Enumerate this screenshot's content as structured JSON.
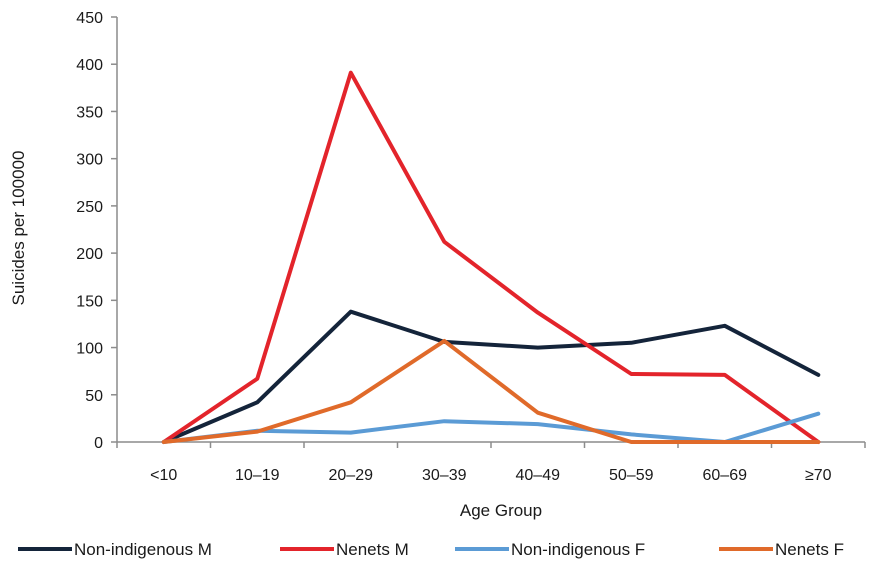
{
  "chart_data": {
    "type": "line",
    "title": "",
    "xlabel": "Age Group",
    "ylabel": "Suicides per 100000",
    "categories": [
      "<10",
      "10–19",
      "20–29",
      "30–39",
      "40–49",
      "50–59",
      "60–69",
      "≥70"
    ],
    "ylim": [
      0,
      450
    ],
    "yticks": [
      0,
      50,
      100,
      150,
      200,
      250,
      300,
      350,
      400,
      450
    ],
    "grid": false,
    "legend_position": "bottom",
    "series": [
      {
        "name": "Non-indigenous M",
        "color": "#14243a",
        "values": [
          0,
          42,
          138,
          106,
          100,
          105,
          123,
          71
        ]
      },
      {
        "name": "Nenets M",
        "color": "#e3242b",
        "values": [
          0,
          67,
          391,
          212,
          137,
          72,
          71,
          0
        ]
      },
      {
        "name": "Non-indigenous F",
        "color": "#5b9bd5",
        "values": [
          0,
          12,
          10,
          22,
          19,
          8,
          0,
          30
        ]
      },
      {
        "name": "Nenets F",
        "color": "#e06a2a",
        "values": [
          0,
          11,
          42,
          107,
          31,
          0,
          0,
          0
        ]
      }
    ]
  }
}
